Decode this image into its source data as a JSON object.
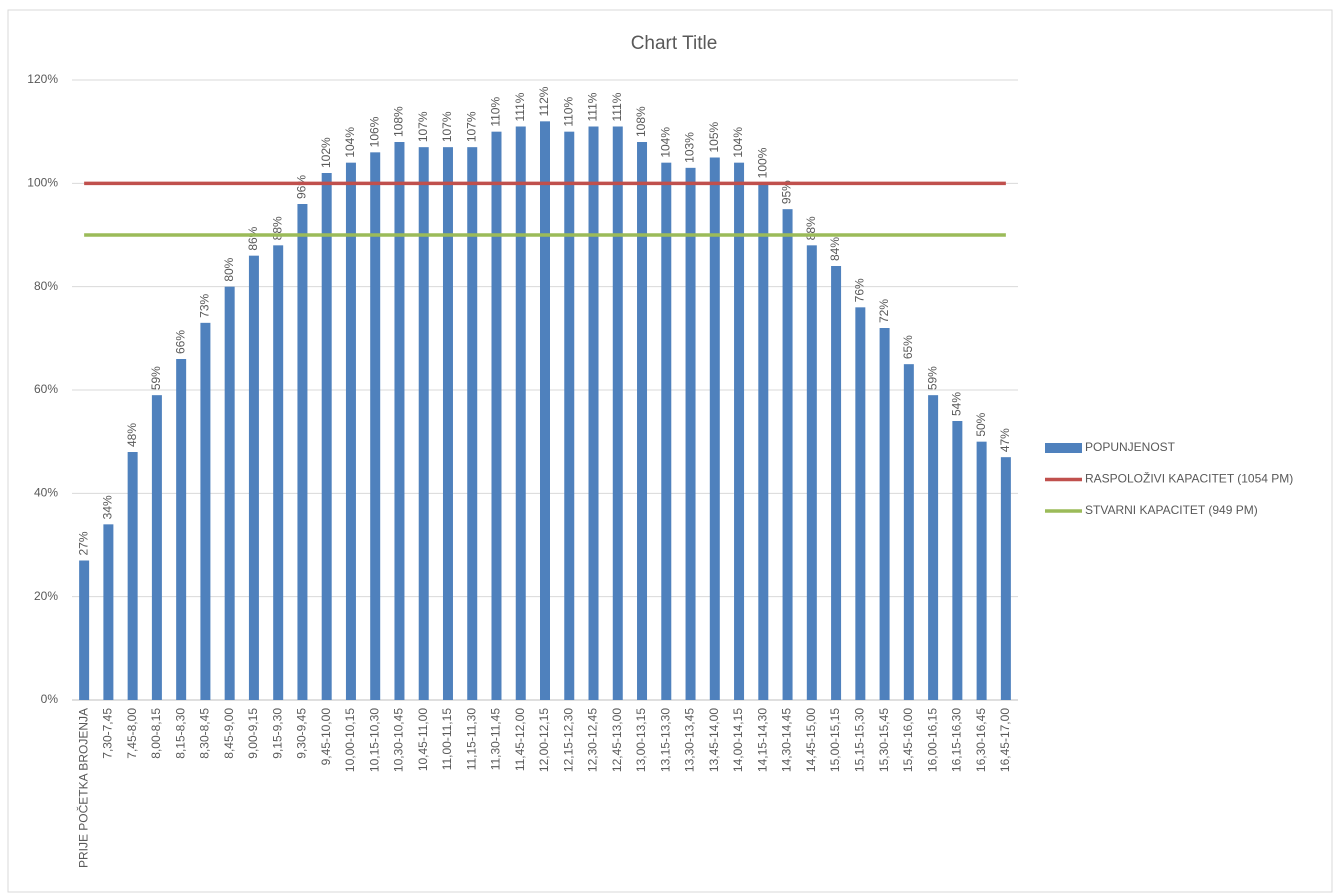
{
  "chart_data": {
    "type": "bar",
    "title": "Chart Title",
    "categories": [
      "PRIJE POČETKA BROJENJA",
      "7,30-7,45",
      "7,45-8,00",
      "8,00-8,15",
      "8,15-8,30",
      "8,30-8,45",
      "8,45-9,00",
      "9,00-9,15",
      "9,15-9,30",
      "9,30-9,45",
      "9,45-10,00",
      "10,00-10,15",
      "10,15-10,30",
      "10,30-10,45",
      "10,45-11,00",
      "11,00-11,15",
      "11,15-11,30",
      "11,30-11,45",
      "11,45-12,00",
      "12,00-12,15",
      "12,15-12,30",
      "12,30-12,45",
      "12,45-13,00",
      "13,00-13,15",
      "13,15-13,30",
      "13,30-13,45",
      "13,45-14,00",
      "14,00-14,15",
      "14,15-14,30",
      "14,30-14,45",
      "14,45-15,00",
      "15,00-15,15",
      "15,15-15,30",
      "15,30-15,45",
      "15,45-16,00",
      "16,00-16,15",
      "16,15-16,30",
      "16,30-16,45",
      "16,45-17,00"
    ],
    "series": [
      {
        "name": "POPUNJENOST",
        "type": "bar",
        "color": "#4f81bd",
        "values": [
          27,
          34,
          48,
          59,
          66,
          73,
          80,
          86,
          88,
          96,
          102,
          104,
          106,
          108,
          107,
          107,
          107,
          110,
          111,
          112,
          110,
          111,
          111,
          108,
          104,
          103,
          105,
          104,
          100,
          95,
          88,
          84,
          76,
          72,
          65,
          59,
          54,
          50,
          47
        ],
        "value_labels": [
          "27%",
          "34%",
          "48%",
          "59%",
          "66%",
          "73%",
          "80%",
          "86%",
          "88%",
          "96%",
          "102%",
          "104%",
          "106%",
          "108%",
          "107%",
          "107%",
          "107%",
          "110%",
          "111%",
          "112%",
          "110%",
          "111%",
          "111%",
          "108%",
          "104%",
          "103%",
          "105%",
          "104%",
          "100%",
          "95%",
          "88%",
          "84%",
          "76%",
          "72%",
          "65%",
          "59%",
          "54%",
          "50%",
          "47%"
        ]
      },
      {
        "name": "RASPOLOŽIVI KAPACITET (1054 PM)",
        "type": "line",
        "color": "#c0504d",
        "values": [
          100,
          100,
          100,
          100,
          100,
          100,
          100,
          100,
          100,
          100,
          100,
          100,
          100,
          100,
          100,
          100,
          100,
          100,
          100,
          100,
          100,
          100,
          100,
          100,
          100,
          100,
          100,
          100,
          100,
          100,
          100,
          100,
          100,
          100,
          100,
          100,
          100,
          100,
          100
        ]
      },
      {
        "name": "STVARNI KAPACITET (949 PM)",
        "type": "line",
        "color": "#9bbb59",
        "values": [
          90,
          90,
          90,
          90,
          90,
          90,
          90,
          90,
          90,
          90,
          90,
          90,
          90,
          90,
          90,
          90,
          90,
          90,
          90,
          90,
          90,
          90,
          90,
          90,
          90,
          90,
          90,
          90,
          90,
          90,
          90,
          90,
          90,
          90,
          90,
          90,
          90,
          90,
          90
        ]
      }
    ],
    "ylim": [
      0,
      120
    ],
    "yticks": [
      {
        "value": 0,
        "label": "0%"
      },
      {
        "value": 20,
        "label": "20%"
      },
      {
        "value": 40,
        "label": "40%"
      },
      {
        "value": 60,
        "label": "60%"
      },
      {
        "value": 80,
        "label": "80%"
      },
      {
        "value": 100,
        "label": "100%"
      },
      {
        "value": 120,
        "label": "120%"
      }
    ],
    "grid": true,
    "legend": "right"
  }
}
